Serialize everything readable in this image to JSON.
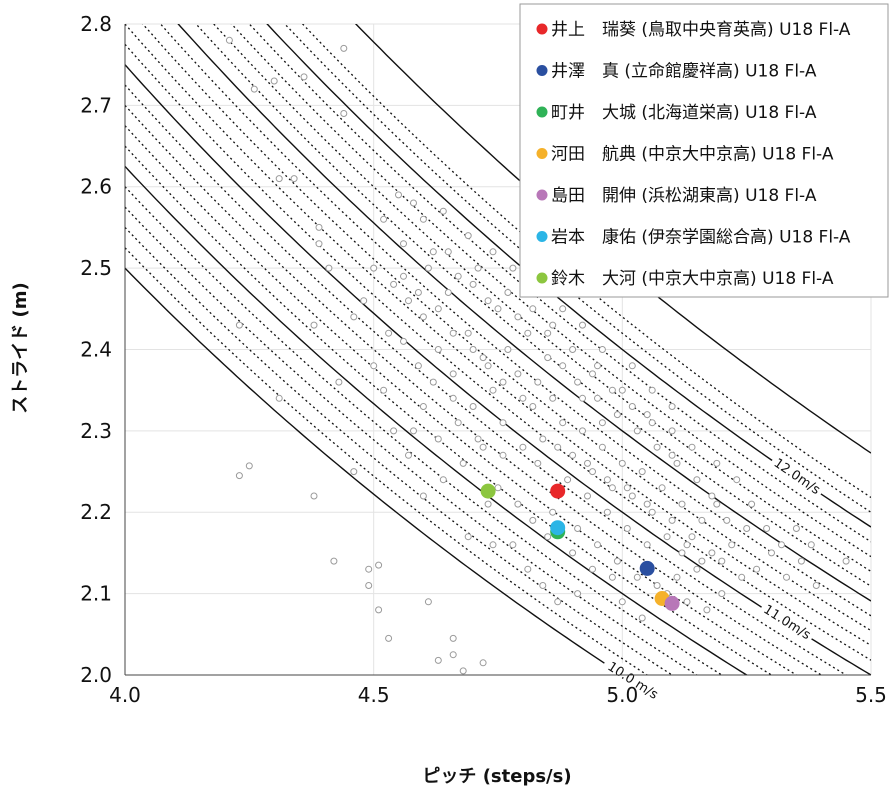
{
  "chart_data": {
    "type": "scatter",
    "xlabel": "ピッチ (steps/s)",
    "ylabel": "ストライド (m)",
    "xlim": [
      4.0,
      5.5
    ],
    "ylim": [
      2.0,
      2.8
    ],
    "xticks": [
      "4.0",
      "4.5",
      "5.0",
      "5.5"
    ],
    "yticks": [
      "2.0",
      "2.1",
      "2.2",
      "2.3",
      "2.4",
      "2.5",
      "2.6",
      "2.7",
      "2.8"
    ],
    "grid": true,
    "legend_position": "top-right",
    "speed_isolines": {
      "solid": [
        10.0,
        10.5,
        11.0,
        11.5,
        12.0,
        12.5
      ],
      "dotted": [
        10.1,
        10.2,
        10.3,
        10.4,
        10.6,
        10.7,
        10.8,
        10.9,
        11.1,
        11.2,
        11.3,
        11.4,
        11.6,
        11.7,
        11.8,
        11.9,
        12.1,
        12.2
      ],
      "labels": [
        {
          "text": "10.0 m/s",
          "speed": 10.0
        },
        {
          "text": "11.0m/s",
          "speed": 11.0
        },
        {
          "text": "12.0m/s",
          "speed": 12.0
        }
      ]
    },
    "highlighted_series": [
      {
        "name": "井上　瑞葵 (鳥取中央育英高) U18 Fl-A",
        "color": "#e8282a",
        "x": 4.87,
        "y": 2.226
      },
      {
        "name": "井澤　真 (立命館慶祥高) U18 Fl-A",
        "color": "#2a4fa0",
        "x": 5.05,
        "y": 2.131
      },
      {
        "name": "町井　大城 (北海道栄高) U18 Fl-A",
        "color": "#2fb257",
        "x": 4.87,
        "y": 2.176
      },
      {
        "name": "河田　航典 (中京大中京高) U18 Fl-A",
        "color": "#f5b12a",
        "x": 5.08,
        "y": 2.094
      },
      {
        "name": "島田　開伸 (浜松湖東高) U18 Fl-A",
        "color": "#b877b8",
        "x": 5.1,
        "y": 2.088
      },
      {
        "name": "岩本　康佑 (伊奈学園総合高) U18 Fl-A",
        "color": "#2bb5e6",
        "x": 4.87,
        "y": 2.181
      },
      {
        "name": "鈴木　大河 (中京大中京高) U18 Fl-A",
        "color": "#8cc63f",
        "x": 4.73,
        "y": 2.226
      }
    ],
    "background_points": {
      "note_color": "#9a9a9a",
      "outliers": [
        [
          4.21,
          2.78
        ],
        [
          4.26,
          2.72
        ],
        [
          4.3,
          2.73
        ],
        [
          4.31,
          2.61
        ],
        [
          4.34,
          2.61
        ],
        [
          4.36,
          2.735
        ],
        [
          4.44,
          2.77
        ],
        [
          4.44,
          2.69
        ],
        [
          4.23,
          2.43
        ],
        [
          4.31,
          2.34
        ],
        [
          4.38,
          2.43
        ],
        [
          4.39,
          2.53
        ],
        [
          4.39,
          2.55
        ],
        [
          4.41,
          2.5
        ],
        [
          4.43,
          2.36
        ],
        [
          4.46,
          2.44
        ],
        [
          4.23,
          2.245
        ],
        [
          4.25,
          2.257
        ],
        [
          4.38,
          2.22
        ],
        [
          4.42,
          2.14
        ],
        [
          4.46,
          2.25
        ],
        [
          4.49,
          2.13
        ],
        [
          4.49,
          2.11
        ],
        [
          4.51,
          2.135
        ],
        [
          4.51,
          2.08
        ],
        [
          4.53,
          2.045
        ],
        [
          4.61,
          2.09
        ],
        [
          4.63,
          2.018
        ],
        [
          4.66,
          2.025
        ],
        [
          4.66,
          2.045
        ],
        [
          4.68,
          2.005
        ],
        [
          4.72,
          2.015
        ],
        [
          4.74,
          2.16
        ],
        [
          4.73,
          2.21
        ],
        [
          4.69,
          2.17
        ]
      ],
      "cloud_sample": [
        [
          4.55,
          2.59
        ],
        [
          4.52,
          2.56
        ],
        [
          4.58,
          2.58
        ],
        [
          4.62,
          2.52
        ],
        [
          4.54,
          2.48
        ],
        [
          4.57,
          2.46
        ],
        [
          4.6,
          2.44
        ],
        [
          4.65,
          2.47
        ],
        [
          4.56,
          2.41
        ],
        [
          4.59,
          2.38
        ],
        [
          4.63,
          2.4
        ],
        [
          4.66,
          2.37
        ],
        [
          4.69,
          2.42
        ],
        [
          4.72,
          2.39
        ],
        [
          4.74,
          2.35
        ],
        [
          4.7,
          2.33
        ],
        [
          4.67,
          2.31
        ],
        [
          4.63,
          2.29
        ],
        [
          4.6,
          2.33
        ],
        [
          4.58,
          2.3
        ],
        [
          4.76,
          2.31
        ],
        [
          4.79,
          2.37
        ],
        [
          4.82,
          2.33
        ],
        [
          4.84,
          2.29
        ],
        [
          4.86,
          2.34
        ],
        [
          4.88,
          2.31
        ],
        [
          4.9,
          2.27
        ],
        [
          4.92,
          2.3
        ],
        [
          4.94,
          2.25
        ],
        [
          4.96,
          2.28
        ],
        [
          4.98,
          2.23
        ],
        [
          5.0,
          2.26
        ],
        [
          5.02,
          2.22
        ],
        [
          5.04,
          2.25
        ],
        [
          5.06,
          2.2
        ],
        [
          5.08,
          2.23
        ],
        [
          5.1,
          2.19
        ],
        [
          5.12,
          2.21
        ],
        [
          5.14,
          2.17
        ],
        [
          5.16,
          2.19
        ],
        [
          5.18,
          2.15
        ],
        [
          5.2,
          2.14
        ],
        [
          5.22,
          2.16
        ],
        [
          5.24,
          2.12
        ],
        [
          5.27,
          2.13
        ],
        [
          5.3,
          2.15
        ],
        [
          5.33,
          2.12
        ],
        [
          5.36,
          2.14
        ],
        [
          5.39,
          2.11
        ],
        [
          5.45,
          2.14
        ],
        [
          5.29,
          2.18
        ],
        [
          5.26,
          2.21
        ],
        [
          5.23,
          2.24
        ],
        [
          5.19,
          2.26
        ],
        [
          5.14,
          2.28
        ],
        [
          5.1,
          2.33
        ],
        [
          5.06,
          2.35
        ],
        [
          5.02,
          2.38
        ],
        [
          4.96,
          2.4
        ],
        [
          4.92,
          2.43
        ],
        [
          4.88,
          2.45
        ],
        [
          4.84,
          2.47
        ],
        [
          4.78,
          2.5
        ],
        [
          4.74,
          2.52
        ],
        [
          4.69,
          2.54
        ],
        [
          4.64,
          2.57
        ],
        [
          4.6,
          2.56
        ],
        [
          4.67,
          2.49
        ],
        [
          4.81,
          2.42
        ],
        [
          4.85,
          2.39
        ],
        [
          4.99,
          2.32
        ],
        [
          5.03,
          2.3
        ],
        [
          5.07,
          2.28
        ],
        [
          5.11,
          2.26
        ],
        [
          5.15,
          2.24
        ],
        [
          5.19,
          2.21
        ],
        [
          5.21,
          2.19
        ],
        [
          4.91,
          2.36
        ],
        [
          4.95,
          2.34
        ],
        [
          4.79,
          2.44
        ],
        [
          4.73,
          2.46
        ],
        [
          4.77,
          2.4
        ],
        [
          4.8,
          2.28
        ],
        [
          4.83,
          2.26
        ],
        [
          4.76,
          2.27
        ],
        [
          4.71,
          2.29
        ],
        [
          4.66,
          2.34
        ],
        [
          4.62,
          2.36
        ],
        [
          4.97,
          2.2
        ],
        [
          5.01,
          2.18
        ],
        [
          5.05,
          2.16
        ],
        [
          4.93,
          2.22
        ],
        [
          4.89,
          2.24
        ],
        [
          4.86,
          2.2
        ],
        [
          4.91,
          2.18
        ],
        [
          4.95,
          2.16
        ],
        [
          4.99,
          2.14
        ],
        [
          5.03,
          2.12
        ],
        [
          5.07,
          2.11
        ],
        [
          5.11,
          2.12
        ],
        [
          5.09,
          2.1
        ],
        [
          5.13,
          2.09
        ],
        [
          5.17,
          2.08
        ],
        [
          5.2,
          2.1
        ],
        [
          5.15,
          2.13
        ],
        [
          5.12,
          2.15
        ],
        [
          4.98,
          2.12
        ],
        [
          4.94,
          2.13
        ],
        [
          4.9,
          2.15
        ],
        [
          4.85,
          2.17
        ],
        [
          4.82,
          2.19
        ],
        [
          4.79,
          2.21
        ],
        [
          4.75,
          2.23
        ],
        [
          4.78,
          2.16
        ],
        [
          4.81,
          2.13
        ],
        [
          4.84,
          2.11
        ],
        [
          4.87,
          2.09
        ],
        [
          4.91,
          2.1
        ],
        [
          5.0,
          2.09
        ],
        [
          5.04,
          2.07
        ],
        [
          4.57,
          2.27
        ],
        [
          4.54,
          2.3
        ],
        [
          4.52,
          2.35
        ],
        [
          4.5,
          2.38
        ],
        [
          4.53,
          2.42
        ],
        [
          4.48,
          2.46
        ],
        [
          4.5,
          2.5
        ],
        [
          4.56,
          2.53
        ],
        [
          4.7,
          2.48
        ],
        [
          4.75,
          2.45
        ],
        [
          4.85,
          2.42
        ],
        [
          4.95,
          2.38
        ],
        [
          5.0,
          2.35
        ],
        [
          5.05,
          2.32
        ],
        [
          5.1,
          2.3
        ],
        [
          5.18,
          2.22
        ],
        [
          5.25,
          2.18
        ],
        [
          5.32,
          2.16
        ],
        [
          5.35,
          2.18
        ],
        [
          5.38,
          2.16
        ],
        [
          4.68,
          2.26
        ],
        [
          4.72,
          2.28
        ],
        [
          4.64,
          2.24
        ],
        [
          4.6,
          2.22
        ],
        [
          4.88,
          2.38
        ],
        [
          4.92,
          2.34
        ],
        [
          4.96,
          2.31
        ],
        [
          4.83,
          2.36
        ],
        [
          4.87,
          2.28
        ],
        [
          4.93,
          2.26
        ],
        [
          4.97,
          2.24
        ],
        [
          5.01,
          2.23
        ],
        [
          5.05,
          2.21
        ],
        [
          5.09,
          2.17
        ],
        [
          5.13,
          2.16
        ],
        [
          5.16,
          2.14
        ],
        [
          4.8,
          2.34
        ],
        [
          4.76,
          2.36
        ],
        [
          4.73,
          2.38
        ],
        [
          4.7,
          2.4
        ],
        [
          4.66,
          2.42
        ],
        [
          4.63,
          2.45
        ],
        [
          4.59,
          2.47
        ],
        [
          4.56,
          2.49
        ],
        [
          4.61,
          2.5
        ],
        [
          4.65,
          2.52
        ],
        [
          4.71,
          2.5
        ],
        [
          4.77,
          2.47
        ],
        [
          4.82,
          2.45
        ],
        [
          4.86,
          2.43
        ],
        [
          4.9,
          2.4
        ],
        [
          4.94,
          2.37
        ],
        [
          4.98,
          2.35
        ],
        [
          5.02,
          2.33
        ],
        [
          5.06,
          2.31
        ],
        [
          5.1,
          2.27
        ]
      ]
    },
    "legend_entries": [
      "井上　瑞葵 (鳥取中央育英高) U18 Fl-A",
      "井澤　真 (立命館慶祥高) U18 Fl-A",
      "町井　大城 (北海道栄高) U18 Fl-A",
      "河田　航典 (中京大中京高) U18 Fl-A",
      "島田　開伸 (浜松湖東高) U18 Fl-A",
      "岩本　康佑 (伊奈学園総合高) U18 Fl-A",
      "鈴木　大河 (中京大中京高) U18 Fl-A"
    ]
  }
}
